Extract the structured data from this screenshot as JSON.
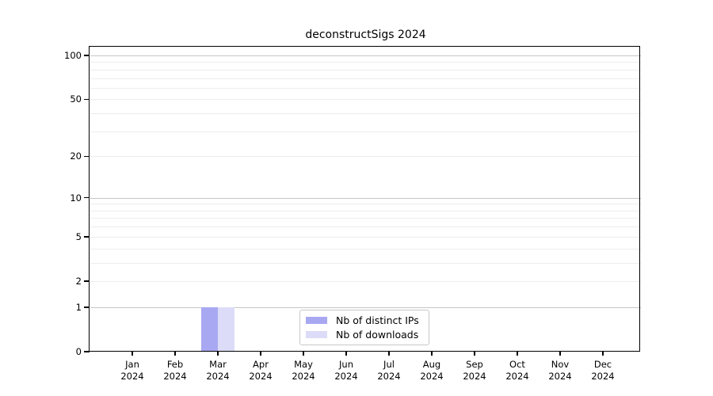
{
  "chart_data": {
    "type": "bar",
    "title": "deconstructSigs 2024",
    "year": "2024",
    "categories": [
      "Jan",
      "Feb",
      "Mar",
      "Apr",
      "May",
      "Jun",
      "Jul",
      "Aug",
      "Sep",
      "Oct",
      "Nov",
      "Dec"
    ],
    "series": [
      {
        "name": "Nb of distinct IPs",
        "color": "#a8a8f2",
        "values": [
          0,
          0,
          1,
          0,
          0,
          0,
          0,
          0,
          0,
          0,
          0,
          0
        ]
      },
      {
        "name": "Nb of downloads",
        "color": "#dcdcf8",
        "values": [
          0,
          0,
          1,
          0,
          0,
          0,
          0,
          0,
          0,
          0,
          0,
          0
        ]
      }
    ],
    "y_ticks": [
      0,
      1,
      2,
      5,
      10,
      20,
      50,
      100
    ],
    "y_minor_gridlines": [
      2,
      3,
      4,
      5,
      6,
      7,
      8,
      9,
      20,
      30,
      40,
      50,
      60,
      70,
      80,
      90
    ],
    "y_major_gridlines": [
      1,
      10,
      100
    ],
    "y_scale": "log(1+x)",
    "ylim": [
      0,
      115
    ],
    "xlabel": "",
    "ylabel": "",
    "legend_position": "bottom-center",
    "grid": "horizontal"
  },
  "colors": {
    "background": "#ffffff",
    "axis": "#000000",
    "major_grid": "#c6c6c6",
    "minor_grid": "#ededed",
    "text": "#000000"
  }
}
